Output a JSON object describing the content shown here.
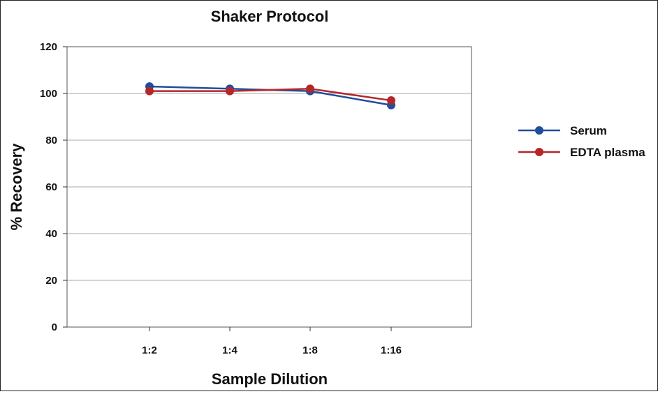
{
  "chart_data": {
    "type": "line",
    "title": "Shaker Protocol",
    "xlabel": "Sample Dilution",
    "ylabel": "% Recovery",
    "categories": [
      "1:2",
      "1:4",
      "1:8",
      "1:16"
    ],
    "ylim": [
      0,
      120
    ],
    "yticks": [
      0,
      20,
      40,
      60,
      80,
      100,
      120
    ],
    "grid": true,
    "legend_position": "right",
    "series": [
      {
        "name": "Serum",
        "color": "#1f4e9c",
        "values": [
          103,
          102,
          101,
          95
        ]
      },
      {
        "name": "EDTA plasma",
        "color": "#b5262b",
        "values": [
          101,
          101,
          102,
          97
        ]
      }
    ]
  }
}
